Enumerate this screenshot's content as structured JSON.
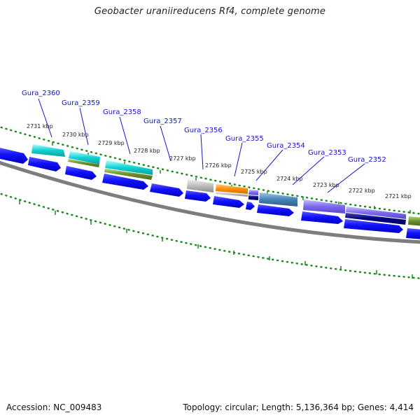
{
  "title": "Geobacter uraniireducens Rf4, complete genome",
  "footer": {
    "accession": "Accession: NC_009483",
    "details": "Topology: circular; Length: 5,136,364 bp; Genes: 4,414"
  },
  "ticks": [
    {
      "label": "2731 kbp"
    },
    {
      "label": "2730 kbp"
    },
    {
      "label": "2729 kbp"
    },
    {
      "label": "2728 kbp"
    },
    {
      "label": "2727 kbp"
    },
    {
      "label": "2726 kbp"
    },
    {
      "label": "2725 kbp"
    },
    {
      "label": "2724 kbp"
    },
    {
      "label": "2723 kbp"
    },
    {
      "label": "2722 kbp"
    },
    {
      "label": "2721 kbp"
    }
  ],
  "genes": [
    {
      "label": "Gura_2360"
    },
    {
      "label": "Gura_2359"
    },
    {
      "label": "Gura_2358"
    },
    {
      "label": "Gura_2357"
    },
    {
      "label": "Gura_2356"
    },
    {
      "label": "Gura_2355"
    },
    {
      "label": "Gura_2354"
    },
    {
      "label": "Gura_2353"
    },
    {
      "label": "Gura_2352"
    }
  ],
  "colors": {
    "backbone": "#7d7d7d",
    "ticks": "#1b8a1b",
    "gene_blue": "#1010ff",
    "gene_cyan": "#10d0d0",
    "gene_olive": "#6b8f2b",
    "gene_gray": "#bdbdbd",
    "gene_orange": "#ff8c00",
    "gene_steel": "#4682b4",
    "gene_purple": "#7b68ee",
    "gene_navy": "#000080",
    "label_blue": "#1515c8"
  }
}
